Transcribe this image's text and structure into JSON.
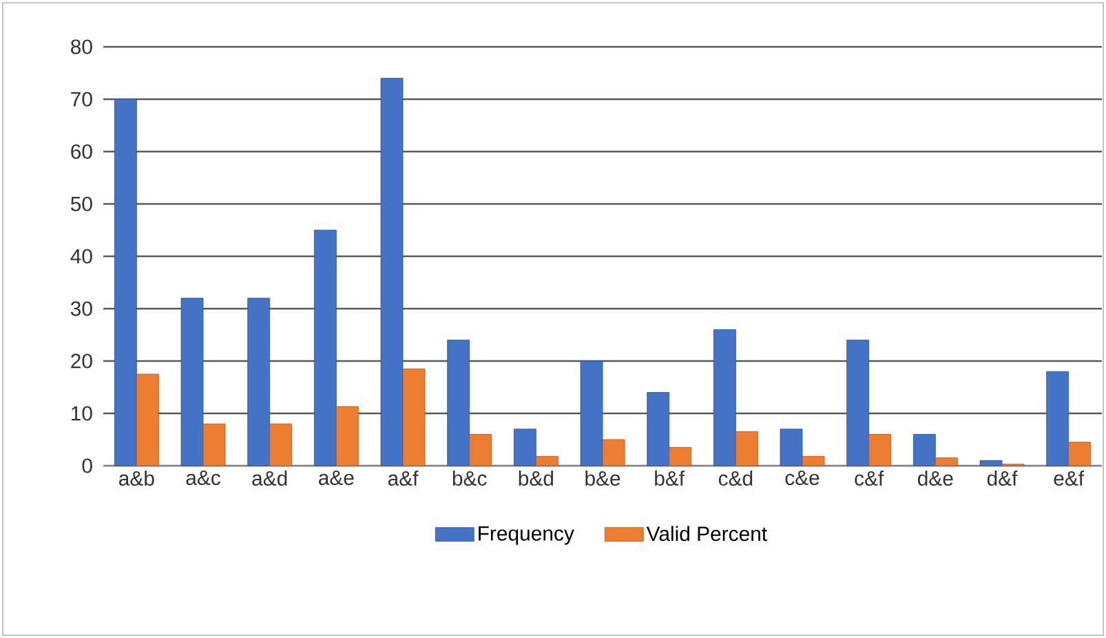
{
  "chart_data": {
    "type": "bar",
    "categories": [
      "a&b",
      "a&c",
      "a&d",
      "a&e",
      "a&f",
      "b&c",
      "b&d",
      "b&e",
      "b&f",
      "c&d",
      "c&e",
      "c&f",
      "d&e",
      "d&f",
      "e&f"
    ],
    "series": [
      {
        "name": "Frequency",
        "color": "#4472c4",
        "values": [
          70,
          32,
          32,
          45,
          74,
          24,
          7,
          20,
          14,
          26,
          7,
          24,
          6,
          1,
          18
        ]
      },
      {
        "name": "Valid Percent",
        "color": "#ed7d31",
        "values": [
          17.5,
          8,
          8,
          11.3,
          18.5,
          6,
          1.8,
          5,
          3.5,
          6.5,
          1.8,
          6,
          1.5,
          0.3,
          4.5
        ]
      }
    ],
    "ylim": [
      0,
      80
    ],
    "yticks": [
      0,
      10,
      20,
      30,
      40,
      50,
      60,
      70,
      80
    ],
    "grid": "y",
    "legend": "bottom"
  }
}
